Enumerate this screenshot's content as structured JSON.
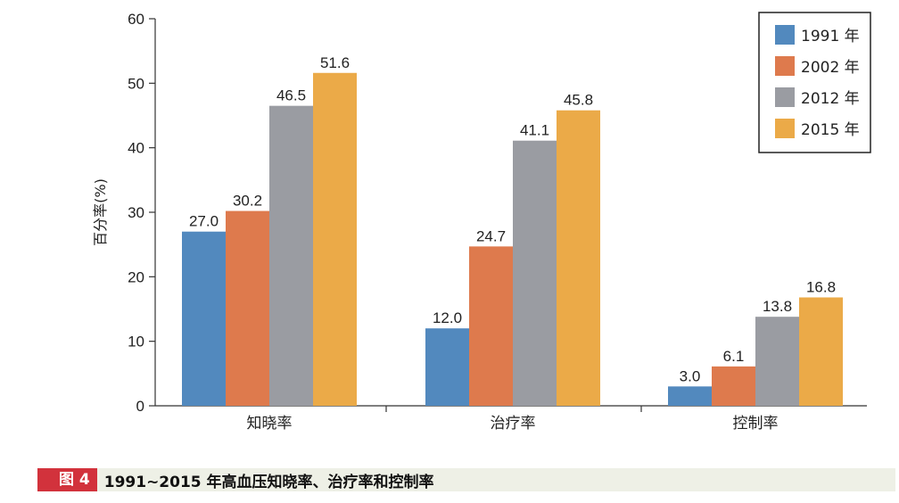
{
  "chart_data": {
    "type": "bar",
    "categories": [
      "知晓率",
      "治疗率",
      "控制率"
    ],
    "series": [
      {
        "name": "1991 年",
        "values": [
          27.0,
          12.0,
          3.0
        ],
        "color": "#5289be"
      },
      {
        "name": "2002 年",
        "values": [
          30.2,
          24.7,
          6.1
        ],
        "color": "#de7a4d"
      },
      {
        "name": "2012 年",
        "values": [
          46.5,
          41.1,
          13.8
        ],
        "color": "#9a9ca2"
      },
      {
        "name": "2015 年",
        "values": [
          51.6,
          45.8,
          16.8
        ],
        "color": "#ebaa48"
      }
    ],
    "value_labels": [
      [
        "27.0",
        "12.0",
        "3.0"
      ],
      [
        "30.2",
        "24.7",
        "6.1"
      ],
      [
        "46.5",
        "41.1",
        "13.8"
      ],
      [
        "51.6",
        "45.8",
        "16.8"
      ]
    ],
    "ylabel": "百分率(%)",
    "ylim": [
      0,
      60
    ],
    "yticks": [
      0,
      10,
      20,
      30,
      40,
      50,
      60
    ],
    "legend_position": "top-right",
    "grid": false
  },
  "caption": {
    "figure_label": "图 4",
    "title": "1991~2015 年高血压知晓率、治疗率和控制率"
  },
  "colors": {
    "caption_label_bg": "#d2323c",
    "caption_bar_bg": "#eef0e6"
  }
}
